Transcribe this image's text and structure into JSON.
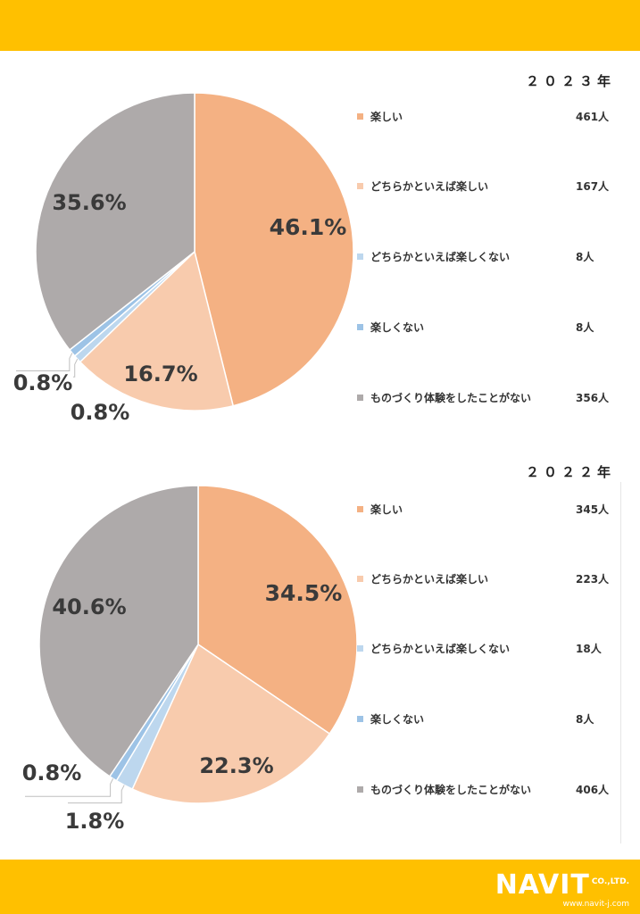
{
  "chart_data": [
    {
      "type": "pie",
      "title": "２０２３年",
      "slices": [
        {
          "label": "楽しい",
          "count": "461人",
          "percent": 46.1,
          "percent_label": "46.1%",
          "color": "#f4b183"
        },
        {
          "label": "どちらかといえば楽しい",
          "count": "167人",
          "percent": 16.7,
          "percent_label": "16.7%",
          "color": "#f8cbad"
        },
        {
          "label": "どちらかといえば楽しくない",
          "count": "8人",
          "percent": 0.8,
          "percent_label": "0.8%",
          "color": "#bdd7ee"
        },
        {
          "label": "楽しくない",
          "count": "8人",
          "percent": 0.8,
          "percent_label": "0.8%",
          "color": "#9dc3e6"
        },
        {
          "label": "ものづくり体験をしたことがない",
          "count": "356人",
          "percent": 35.6,
          "percent_label": "35.6%",
          "color": "#aeaaaa"
        }
      ],
      "legend_position": "right"
    },
    {
      "type": "pie",
      "title": "２０２２年",
      "slices": [
        {
          "label": "楽しい",
          "count": "345人",
          "percent": 34.5,
          "percent_label": "34.5%",
          "color": "#f4b183"
        },
        {
          "label": "どちらかといえば楽しい",
          "count": "223人",
          "percent": 22.3,
          "percent_label": "22.3%",
          "color": "#f8cbad"
        },
        {
          "label": "どちらかといえば楽しくない",
          "count": "18人",
          "percent": 1.8,
          "percent_label": "1.8%",
          "color": "#bdd7ee"
        },
        {
          "label": "楽しくない",
          "count": "8人",
          "percent": 0.8,
          "percent_label": "0.8%",
          "color": "#9dc3e6"
        },
        {
          "label": "ものづくり体験をしたことがない",
          "count": "406人",
          "percent": 40.6,
          "percent_label": "40.6%",
          "color": "#aeaaaa"
        }
      ],
      "legend_position": "right"
    }
  ],
  "footer": {
    "logo_text": "NAVIT",
    "logo_suffix": "CO.,LTD.",
    "url": "www.navit-j.com"
  }
}
